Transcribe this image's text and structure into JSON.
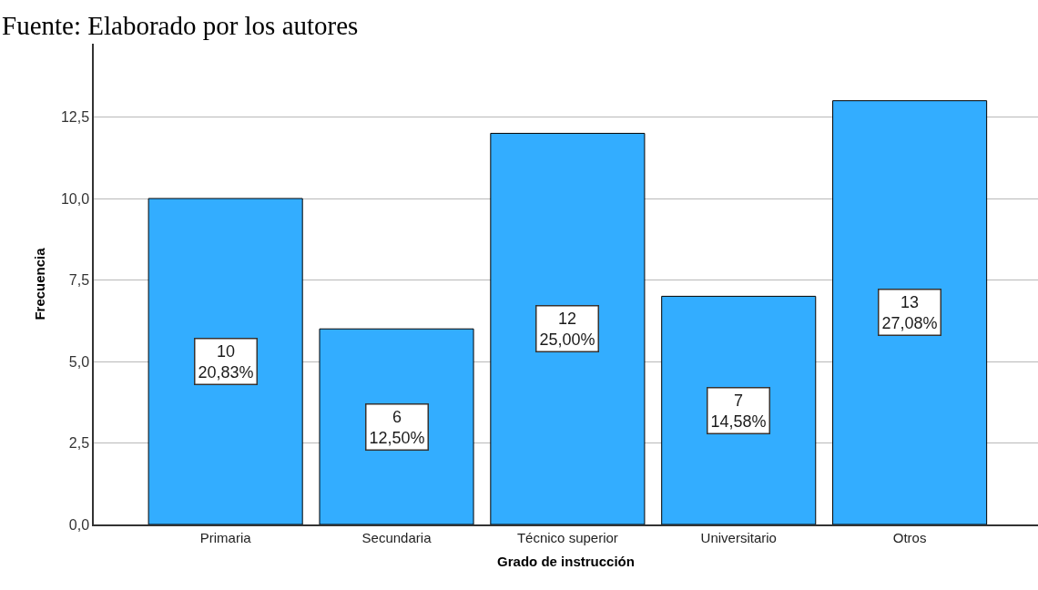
{
  "chart_data": {
    "type": "bar",
    "categories": [
      "Primaria",
      "Secundaria",
      "Técnico superior",
      "Universitario",
      "Otros"
    ],
    "values": [
      10,
      6,
      12,
      7,
      13
    ],
    "value_labels": [
      "10\n20,83%",
      "6\n12,50%",
      "12\n25,00%",
      "7\n14,58%",
      "13\n27,08%"
    ],
    "color": "#33adff",
    "xlabel": "Grado de instrucción",
    "ylabel": "Frecuencia",
    "annotations": [
      "Fuente: Elaborado por los autores"
    ],
    "ylim": [
      0,
      14.75
    ],
    "yticks": [
      {
        "value": 0,
        "label": "0,0"
      },
      {
        "value": 2.5,
        "label": "2,5"
      },
      {
        "value": 5,
        "label": "5,0"
      },
      {
        "value": 7.5,
        "label": "7,5"
      },
      {
        "value": 10,
        "label": "10,0"
      },
      {
        "value": 12.5,
        "label": "12,5"
      }
    ],
    "grid": "y"
  }
}
